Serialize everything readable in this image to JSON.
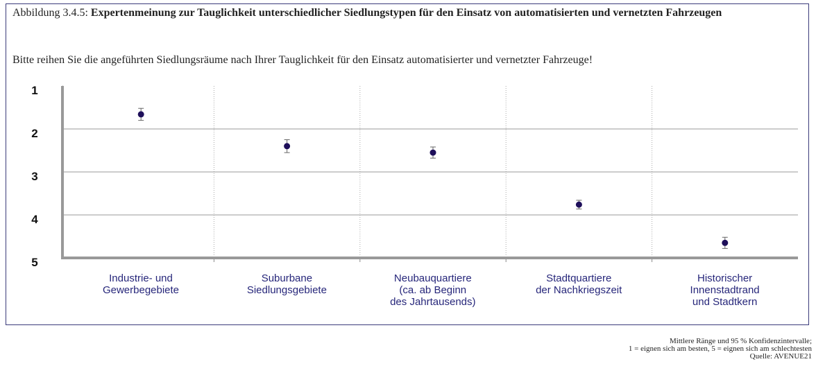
{
  "chart_data": {
    "type": "errorbar",
    "figure_label": "Abbildung 3.4.5:",
    "title": "Expertenmeinung zur Tauglichkeit unterschiedlicher Siedlungstypen für den Einsatz von automatisierten und vernetzten Fahrzeugen",
    "subtitle": "Bitte reihen Sie die angeführten Siedlungsräume nach Ihrer Tauglichkeit für den Einsatz automatisierter und vernetzter Fahrzeuge!",
    "categories": [
      "Industrie- und\nGewerbegebiete",
      "Suburbane\nSiedlungsgebiete",
      "Neubauquartiere\n(ca. ab Beginn\ndes Jahrtausends)",
      "Stadtquartiere\nder Nachkriegszeit",
      "Historischer\nInnenstadtrand\nund Stadtkern"
    ],
    "values": [
      1.66,
      2.4,
      2.55,
      3.76,
      4.65
    ],
    "errors": [
      0.14,
      0.15,
      0.13,
      0.1,
      0.13
    ],
    "color": "#1e0f5a",
    "ylim": [
      1,
      5
    ],
    "yticks": [
      1,
      2,
      3,
      4,
      5
    ],
    "inverted": true,
    "grid": true,
    "notes": [
      "Mittlere Ränge und 95 % Konfidenzintervalle;",
      "1 = eignen sich am besten, 5 = eignen sich am schlechtesten",
      "Quelle: AVENUE21"
    ]
  }
}
